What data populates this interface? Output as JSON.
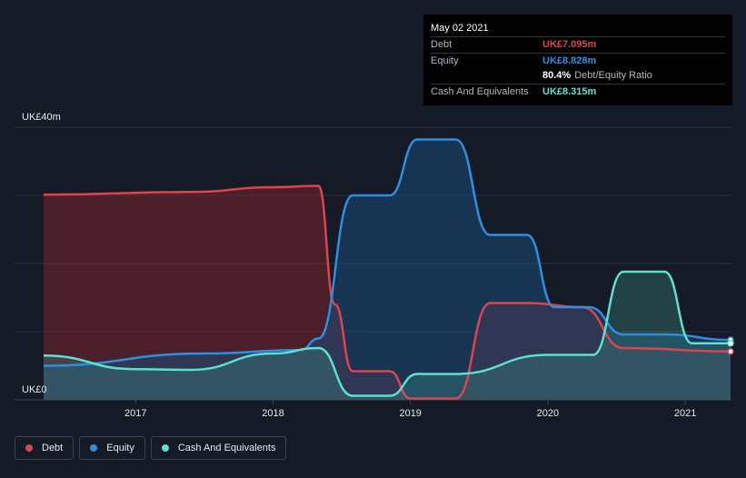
{
  "tooltip": {
    "date": "May 02 2021",
    "rows": [
      {
        "label": "Debt",
        "value": "UK£7.095m",
        "color": "#e0424e"
      },
      {
        "label": "Equity",
        "value": "UK£8.828m",
        "color": "#2e8fe0"
      },
      {
        "label": "",
        "value": "80.4%",
        "sub": "Debt/Equity Ratio",
        "color": "#ffffff"
      },
      {
        "label": "Cash And Equivalents",
        "value": "UK£8.315m",
        "color": "#5ce0d0"
      }
    ]
  },
  "legend": [
    {
      "label": "Debt",
      "color": "#e0424e"
    },
    {
      "label": "Equity",
      "color": "#2e8fe0"
    },
    {
      "label": "Cash And Equivalents",
      "color": "#5ce0d0"
    }
  ],
  "chart_data": {
    "type": "area",
    "y_tick_labels": [
      "UK£0",
      "UK£40m"
    ],
    "ylim": [
      0,
      40
    ],
    "xlim": [
      2016.33,
      2021.33
    ],
    "x_tick_labels": [
      "2017",
      "2018",
      "2019",
      "2020",
      "2021"
    ],
    "x_ticks": [
      2017,
      2018,
      2019,
      2020,
      2021
    ],
    "grid": true,
    "legend_position": "bottom-left",
    "series": [
      {
        "name": "Debt",
        "color": "#e0424e",
        "points": [
          [
            2016.33,
            30.1
          ],
          [
            2017.4,
            30.5
          ],
          [
            2018.0,
            31.2
          ],
          [
            2018.33,
            31.4
          ],
          [
            2018.45,
            14
          ],
          [
            2018.58,
            4.2
          ],
          [
            2018.85,
            4.2
          ],
          [
            2019.0,
            0.2
          ],
          [
            2019.33,
            0.2
          ],
          [
            2019.58,
            14.2
          ],
          [
            2019.85,
            14.2
          ],
          [
            2020.25,
            13.6
          ],
          [
            2020.55,
            7.6
          ],
          [
            2021.33,
            7.1
          ]
        ]
      },
      {
        "name": "Equity",
        "color": "#2e8fe0",
        "points": [
          [
            2016.33,
            5
          ],
          [
            2017.5,
            6.8
          ],
          [
            2018.2,
            7.3
          ],
          [
            2018.33,
            9
          ],
          [
            2018.58,
            30
          ],
          [
            2018.85,
            30
          ],
          [
            2019.05,
            38.2
          ],
          [
            2019.33,
            38.2
          ],
          [
            2019.58,
            24.2
          ],
          [
            2019.85,
            24.2
          ],
          [
            2020.05,
            13.6
          ],
          [
            2020.3,
            13.6
          ],
          [
            2020.55,
            9.6
          ],
          [
            2020.85,
            9.6
          ],
          [
            2021.33,
            8.8
          ]
        ]
      },
      {
        "name": "Cash And Equivalents",
        "color": "#5ce0d0",
        "points": [
          [
            2016.33,
            6.5
          ],
          [
            2017.0,
            4.5
          ],
          [
            2017.4,
            4.4
          ],
          [
            2018.0,
            6.8
          ],
          [
            2018.33,
            7.6
          ],
          [
            2018.58,
            0.6
          ],
          [
            2018.85,
            0.6
          ],
          [
            2019.05,
            3.8
          ],
          [
            2019.33,
            3.8
          ],
          [
            2020.0,
            6.6
          ],
          [
            2020.33,
            6.6
          ],
          [
            2020.55,
            18.8
          ],
          [
            2020.85,
            18.8
          ],
          [
            2021.05,
            8.3
          ],
          [
            2021.33,
            8.3
          ]
        ]
      }
    ]
  }
}
